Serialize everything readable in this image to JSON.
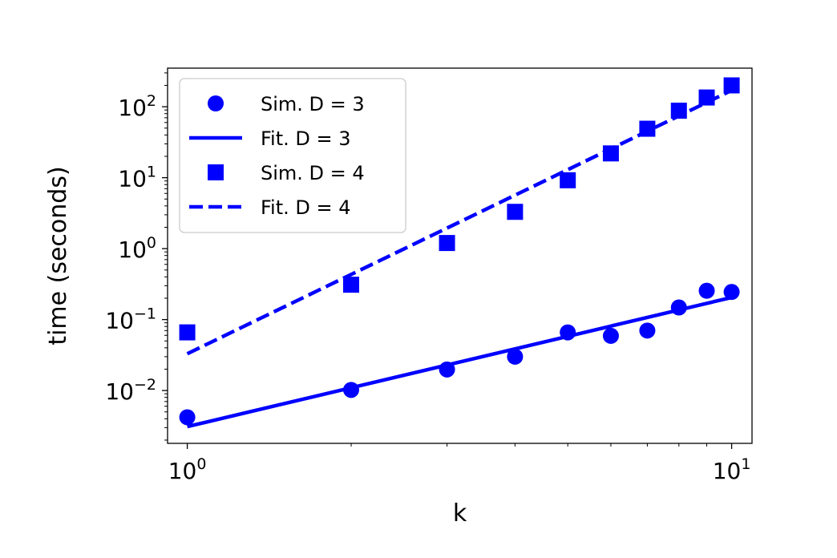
{
  "chart_data": {
    "type": "scatter",
    "xlabel": "k",
    "ylabel": "time (seconds)",
    "xscale": "log",
    "yscale": "log",
    "xlim": [
      0.92,
      10.9
    ],
    "ylim": [
      0.0018,
      350
    ],
    "x_ticks": [
      {
        "value": 1,
        "base": "10",
        "exp": "0"
      },
      {
        "value": 10,
        "base": "10",
        "exp": "1"
      }
    ],
    "y_ticks": [
      {
        "value": 0.01,
        "base": "10",
        "exp": "−2"
      },
      {
        "value": 0.1,
        "base": "10",
        "exp": "−1"
      },
      {
        "value": 1,
        "base": "10",
        "exp": "0"
      },
      {
        "value": 10,
        "base": "10",
        "exp": "1"
      },
      {
        "value": 100,
        "base": "10",
        "exp": "2"
      }
    ],
    "grid": false,
    "legend_position": "upper-left",
    "color": "#0000ff",
    "series": [
      {
        "name": "Sim. D = 3",
        "kind": "scatter",
        "marker": "circle",
        "x": [
          1,
          2,
          3,
          4,
          5,
          6,
          7,
          8,
          9,
          10
        ],
        "y": [
          0.0042,
          0.0102,
          0.0198,
          0.03,
          0.066,
          0.059,
          0.07,
          0.148,
          0.255,
          0.245
        ]
      },
      {
        "name": "Fit. D = 3",
        "kind": "line",
        "dash": "solid",
        "x": [
          1,
          10
        ],
        "y": [
          0.0031,
          0.205
        ]
      },
      {
        "name": "Sim. D = 4",
        "kind": "scatter",
        "marker": "square",
        "x": [
          1,
          2,
          3,
          4,
          5,
          6,
          7,
          8,
          9,
          10
        ],
        "y": [
          0.066,
          0.31,
          1.2,
          3.3,
          9.2,
          22,
          49,
          88,
          135,
          200
        ]
      },
      {
        "name": "Fit. D = 4",
        "kind": "line",
        "dash": "dashed",
        "x": [
          1,
          10
        ],
        "y": [
          0.033,
          170
        ]
      }
    ]
  }
}
